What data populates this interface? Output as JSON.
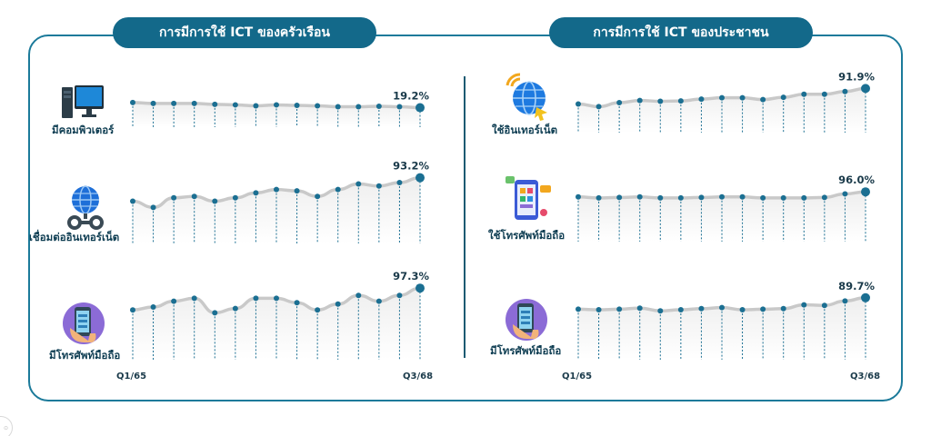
{
  "panels": {
    "left_title": "การมีการใช้ ICT ของครัวเรือน",
    "right_title": "การมีการใช้ ICT ของประชาชน"
  },
  "axis": {
    "left_start": "Q1/65",
    "left_end": "Q3/68",
    "right_start": "Q1/65",
    "right_end": "Q3/68"
  },
  "rows": [
    {
      "label": "มีคอมพิวเตอร์",
      "end_label": "19.2%",
      "icon": "desktop-computer-icon"
    },
    {
      "label": "เชื่อมต่ออินเทอร์เน็ต",
      "end_label": "93.2%",
      "icon": "globe-network-icon"
    },
    {
      "label": "มีโทรศัพท์มือถือ",
      "end_label": "97.3%",
      "icon": "smartphone-hand-icon"
    },
    {
      "label": "ใช้อินเทอร์เน็ต",
      "end_label": "91.9%",
      "icon": "globe-wifi-icon"
    },
    {
      "label": "ใช้โทรศัพท์มือถือ",
      "end_label": "96.0%",
      "icon": "phone-apps-icon"
    },
    {
      "label": "มีโทรศัพท์มือถือ",
      "end_label": "89.7%",
      "icon": "smartphone-hand-icon"
    }
  ],
  "colors": {
    "primary": "#13698a",
    "point": "#1b6f92",
    "line": "#c9c9c9",
    "area": "#eeeeee",
    "stem": "#1b6f92"
  },
  "chart_data": [
    {
      "type": "line",
      "title": "มีคอมพิวเตอร์",
      "x": [
        "Q1/65",
        "",
        "",
        "",
        "",
        "",
        "",
        "",
        "",
        "",
        "",
        "",
        "",
        "",
        "Q3/68"
      ],
      "values": [
        20.3,
        20.1,
        20.1,
        20.1,
        19.9,
        19.8,
        19.6,
        19.8,
        19.7,
        19.6,
        19.4,
        19.4,
        19.5,
        19.4,
        19.2
      ],
      "ylim": [
        17,
        22
      ]
    },
    {
      "type": "line",
      "title": "เชื่อมต่ออินเทอร์เน็ต",
      "x": [
        "Q1/65",
        "",
        "",
        "",
        "",
        "",
        "",
        "",
        "",
        "",
        "",
        "",
        "",
        "",
        "Q3/68"
      ],
      "values": [
        89.8,
        88.9,
        90.3,
        90.5,
        89.8,
        90.3,
        91.0,
        91.5,
        91.3,
        90.5,
        91.5,
        92.3,
        92.0,
        92.5,
        93.2
      ],
      "ylim": [
        85,
        95
      ]
    },
    {
      "type": "line",
      "title": "มีโทรศัพท์มือถือ",
      "x": [
        "Q1/65",
        "",
        "",
        "",
        "",
        "",
        "",
        "",
        "",
        "",
        "",
        "",
        "",
        "",
        "Q3/68"
      ],
      "values": [
        95.8,
        96.0,
        96.4,
        96.6,
        95.6,
        95.9,
        96.6,
        96.6,
        96.3,
        95.8,
        96.2,
        96.8,
        96.4,
        96.8,
        97.3
      ],
      "ylim": [
        93,
        98
      ]
    },
    {
      "type": "line",
      "title": "ใช้อินเทอร์เน็ต",
      "x": [
        "Q1/65",
        "",
        "",
        "",
        "",
        "",
        "",
        "",
        "",
        "",
        "",
        "",
        "",
        "",
        "Q3/68"
      ],
      "values": [
        88.4,
        87.8,
        88.7,
        89.2,
        89.0,
        89.1,
        89.5,
        89.8,
        89.8,
        89.4,
        89.9,
        90.6,
        90.6,
        91.2,
        91.9
      ],
      "ylim": [
        84,
        93
      ]
    },
    {
      "type": "line",
      "title": "ใช้โทรศัพท์มือถือ",
      "x": [
        "Q1/65",
        "",
        "",
        "",
        "",
        "",
        "",
        "",
        "",
        "",
        "",
        "",
        "",
        "",
        "Q3/68"
      ],
      "values": [
        95.0,
        94.8,
        94.9,
        95.0,
        94.8,
        94.8,
        94.9,
        95.0,
        95.0,
        94.8,
        94.8,
        94.8,
        94.9,
        95.6,
        96.0
      ],
      "ylim": [
        88,
        98
      ]
    },
    {
      "type": "line",
      "title": "มีโทรศัพท์มือถือ",
      "x": [
        "Q1/65",
        "",
        "",
        "",
        "",
        "",
        "",
        "",
        "",
        "",
        "",
        "",
        "",
        "",
        "Q3/68"
      ],
      "values": [
        87.6,
        87.5,
        87.6,
        87.8,
        87.3,
        87.5,
        87.7,
        87.9,
        87.5,
        87.6,
        87.7,
        88.4,
        88.3,
        89.1,
        89.7
      ],
      "ylim": [
        80,
        92
      ]
    }
  ]
}
